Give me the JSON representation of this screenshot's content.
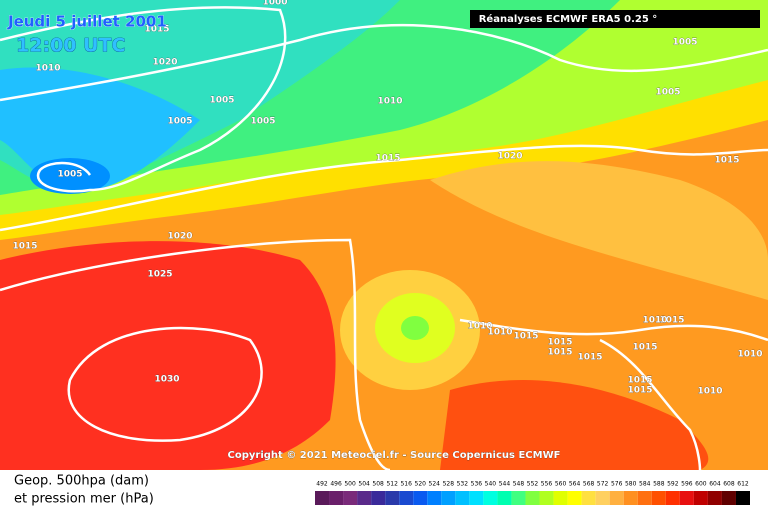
{
  "header": {
    "date": "Jeudi 5 juillet 2001",
    "time": "12:00 UTC",
    "source": "Réanalyses ECMWF ERA5 0.25 °",
    "copyright": "Copyright © 2021 Meteociel.fr - Source Copernicus ECMWF"
  },
  "legend": {
    "line1": "Geop. 500hpa (dam)",
    "line2": "et pression mer (hPa)",
    "ticks": [
      492,
      496,
      500,
      504,
      508,
      512,
      516,
      520,
      524,
      528,
      532,
      536,
      540,
      544,
      548,
      552,
      556,
      560,
      564,
      568,
      572,
      576,
      580,
      584,
      588,
      592,
      596,
      600,
      604,
      608,
      612
    ],
    "colors": [
      "#5a1a5a",
      "#6a1f6a",
      "#7a2a7a",
      "#5a2a8a",
      "#3a2a9a",
      "#2a3aaa",
      "#1a4ad0",
      "#0a5af0",
      "#0080ff",
      "#00a0ff",
      "#00c0ff",
      "#00e0ff",
      "#00ffe0",
      "#00ffb0",
      "#40ff80",
      "#80ff40",
      "#b0ff20",
      "#e0ff00",
      "#ffff00",
      "#ffe040",
      "#ffd060",
      "#ffb040",
      "#ff9020",
      "#ff7010",
      "#ff5000",
      "#ff3000",
      "#e81010",
      "#c00000",
      "#900000",
      "#600000",
      "#000000"
    ]
  },
  "isobar_labels": [
    "1000",
    "1015",
    "1020",
    "1010",
    "1005",
    "1005",
    "1005",
    "1005",
    "1010",
    "1015",
    "1020",
    "1005",
    "1005",
    "1015",
    "1015",
    "1020",
    "1025",
    "1030",
    "1010",
    "1010",
    "1015",
    "1015",
    "1015",
    "1015",
    "1015",
    "1015",
    "1015",
    "1010",
    "1015",
    "1010",
    "1010"
  ]
}
